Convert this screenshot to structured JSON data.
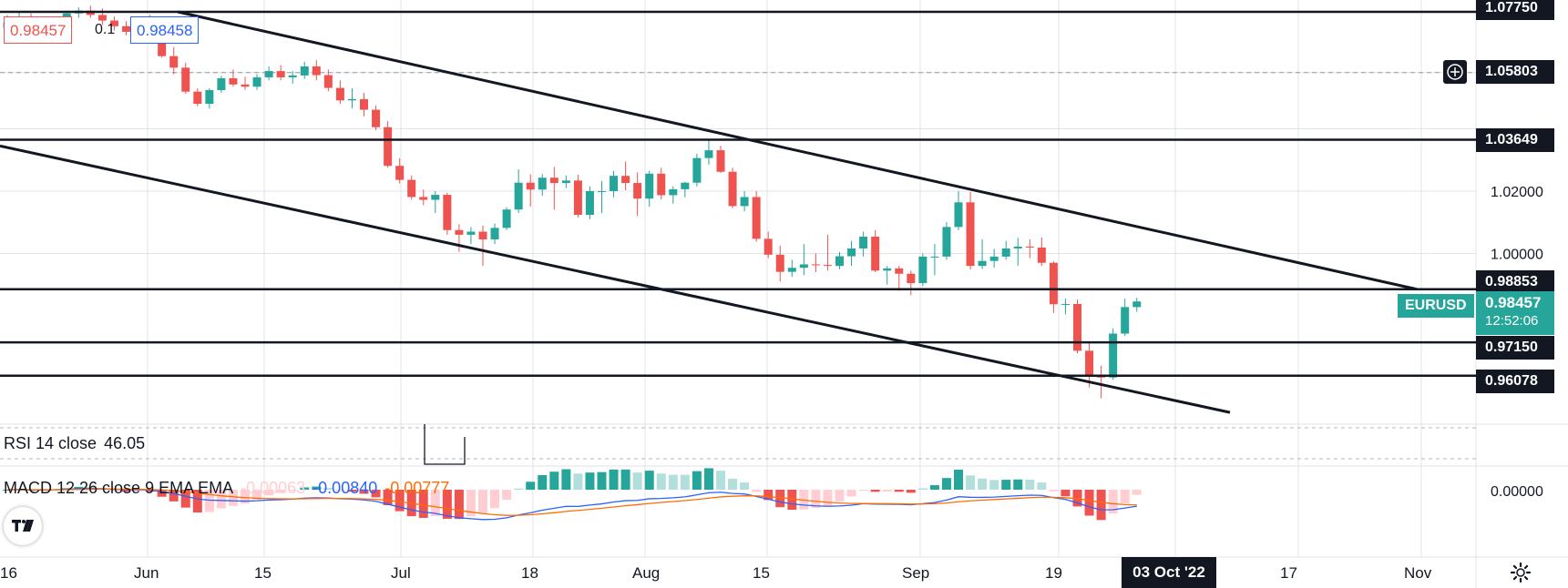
{
  "chart_data": {
    "type": "candlestick",
    "symbol": "EURUSD",
    "price_scale": {
      "ticks": [
        "1.02000",
        "1.00000"
      ],
      "range": [
        0.947,
        1.0813
      ]
    },
    "x_ticks": [
      "16",
      "Jun",
      "15",
      "Jul",
      "18",
      "Aug",
      "15",
      "Sep",
      "19",
      "03 Oct '22",
      "17",
      "Nov"
    ],
    "horizontal_levels": [
      {
        "label": "1.07750",
        "price": 1.0775
      },
      {
        "label": "1.03649",
        "price": 1.03649
      },
      {
        "label": "0.98853",
        "price": 0.98853
      },
      {
        "label": "0.97150",
        "price": 0.9715
      },
      {
        "label": "0.96078",
        "price": 0.96078
      }
    ],
    "crosshair_level": "1.05803",
    "live_price": {
      "value": "0.98457",
      "countdown": "12:52:06"
    },
    "bid": "0.98457",
    "spread": "0.1",
    "ask": "0.98458",
    "candles": [
      [
        1.0724,
        1.0765,
        1.0715,
        1.0741
      ],
      [
        1.0741,
        1.0775,
        1.073,
        1.0751
      ],
      [
        1.0751,
        1.077,
        1.0712,
        1.0725
      ],
      [
        1.0725,
        1.0748,
        1.071,
        1.0736
      ],
      [
        1.0736,
        1.076,
        1.0725,
        1.0748
      ],
      [
        1.0748,
        1.0779,
        1.074,
        1.077
      ],
      [
        1.077,
        1.079,
        1.0756,
        1.0779
      ],
      [
        1.0779,
        1.0795,
        1.0756,
        1.0765
      ],
      [
        1.0765,
        1.0786,
        1.0733,
        1.0747
      ],
      [
        1.0747,
        1.076,
        1.0715,
        1.0729
      ],
      [
        1.0729,
        1.0745,
        1.07,
        1.0711
      ],
      [
        1.0711,
        1.076,
        1.07,
        1.075
      ],
      [
        1.075,
        1.0766,
        1.0705,
        1.0723
      ],
      [
        1.0723,
        1.0735,
        1.0628,
        1.0633
      ],
      [
        1.0633,
        1.0662,
        1.0575,
        1.0596
      ],
      [
        1.0596,
        1.0612,
        1.0512,
        1.0519
      ],
      [
        1.0519,
        1.053,
        1.0472,
        1.048
      ],
      [
        1.048,
        1.053,
        1.0465,
        1.0524
      ],
      [
        1.0524,
        1.057,
        1.0515,
        1.0562
      ],
      [
        1.0562,
        1.059,
        1.0535,
        1.0542
      ],
      [
        1.0542,
        1.0566,
        1.0525,
        1.0535
      ],
      [
        1.0535,
        1.0575,
        1.0525,
        1.0565
      ],
      [
        1.0565,
        1.06,
        1.0555,
        1.0585
      ],
      [
        1.0585,
        1.0604,
        1.0555,
        1.0565
      ],
      [
        1.0565,
        1.0585,
        1.0545,
        1.0571
      ],
      [
        1.0571,
        1.0615,
        1.056,
        1.06
      ],
      [
        1.06,
        1.062,
        1.0555,
        1.0572
      ],
      [
        1.0572,
        1.059,
        1.052,
        1.0531
      ],
      [
        1.0531,
        1.0555,
        1.048,
        1.0491
      ],
      [
        1.0491,
        1.053,
        1.0465,
        1.0495
      ],
      [
        1.0495,
        1.0515,
        1.044,
        1.0461
      ],
      [
        1.0461,
        1.0475,
        1.0395,
        1.0405
      ],
      [
        1.0405,
        1.0425,
        1.0275,
        1.0281
      ],
      [
        1.0281,
        1.0305,
        1.0225,
        1.0236
      ],
      [
        1.0236,
        1.025,
        1.0172,
        1.0181
      ],
      [
        1.0181,
        1.0205,
        1.0155,
        1.0172
      ],
      [
        1.0172,
        1.02,
        1.013,
        1.0188
      ],
      [
        1.0188,
        1.0195,
        1.006,
        1.0075
      ],
      [
        1.0075,
        1.0094,
        1.0005,
        1.006
      ],
      [
        1.006,
        1.0085,
        1.003,
        1.007
      ],
      [
        1.007,
        1.009,
        0.996,
        1.0045
      ],
      [
        1.0045,
        1.0096,
        1.003,
        1.0082
      ],
      [
        1.0082,
        1.0148,
        1.0075,
        1.0141
      ],
      [
        1.0141,
        1.027,
        1.013,
        1.0227
      ],
      [
        1.0227,
        1.0254,
        1.015,
        1.0205
      ],
      [
        1.0205,
        1.0255,
        1.0185,
        1.0243
      ],
      [
        1.0243,
        1.0278,
        1.014,
        1.0226
      ],
      [
        1.0226,
        1.025,
        1.021,
        1.0234
      ],
      [
        1.0234,
        1.0253,
        1.0115,
        1.0124
      ],
      [
        1.0124,
        1.0215,
        1.011,
        1.02
      ],
      [
        1.02,
        1.0232,
        1.013,
        1.02
      ],
      [
        1.02,
        1.0265,
        1.018,
        1.0249
      ],
      [
        1.0249,
        1.0295,
        1.0203,
        1.0226
      ],
      [
        1.0226,
        1.026,
        1.012,
        1.0176
      ],
      [
        1.0176,
        1.0265,
        1.015,
        1.0256
      ],
      [
        1.0256,
        1.0275,
        1.0173,
        1.0187
      ],
      [
        1.0187,
        1.0215,
        1.016,
        1.0206
      ],
      [
        1.0206,
        1.023,
        1.018,
        1.0227
      ],
      [
        1.0227,
        1.032,
        1.0215,
        1.0306
      ],
      [
        1.0306,
        1.0366,
        1.0285,
        1.0331
      ],
      [
        1.0331,
        1.0345,
        1.0258,
        1.0262
      ],
      [
        1.0262,
        1.0275,
        1.0145,
        1.0152
      ],
      [
        1.0152,
        1.02,
        1.0135,
        1.0181
      ],
      [
        1.0181,
        1.02,
        1.0038,
        1.0047
      ],
      [
        1.0047,
        1.007,
        0.9985,
        0.9996
      ],
      [
        0.9996,
        1.0025,
        0.991,
        0.9941
      ],
      [
        0.9941,
        0.998,
        0.9925,
        0.9954
      ],
      [
        0.9954,
        1.003,
        0.993,
        0.9965
      ],
      [
        0.9965,
        1.0,
        0.994,
        0.9963
      ],
      [
        0.9963,
        1.006,
        0.9945,
        0.996
      ],
      [
        0.996,
        1.0005,
        0.995,
        0.9991
      ],
      [
        0.9991,
        1.004,
        0.996,
        1.0016
      ],
      [
        1.0016,
        1.007,
        0.999,
        1.0054
      ],
      [
        1.0054,
        1.0075,
        0.994,
        0.9945
      ],
      [
        0.9945,
        0.996,
        0.99,
        0.9952
      ],
      [
        0.9952,
        0.996,
        0.988,
        0.9935
      ],
      [
        0.9935,
        0.9945,
        0.9866,
        0.9905
      ],
      [
        0.9905,
        1.0,
        0.9895,
        0.999
      ],
      [
        0.999,
        1.003,
        0.993,
        0.999
      ],
      [
        0.999,
        1.0101,
        0.998,
        1.0085
      ],
      [
        1.0085,
        1.02,
        1.0075,
        1.0164
      ],
      [
        1.0164,
        1.0197,
        0.9949,
        0.996
      ],
      [
        0.996,
        1.0045,
        0.995,
        0.9976
      ],
      [
        0.9976,
        1.0015,
        0.9955,
        0.999
      ],
      [
        0.999,
        1.004,
        0.998,
        1.0016
      ],
      [
        1.0016,
        1.005,
        0.996,
        1.0022
      ],
      [
        1.0022,
        1.0045,
        0.9985,
        1.0019
      ],
      [
        1.0019,
        1.0051,
        0.996,
        0.997
      ],
      [
        0.997,
        0.9975,
        0.981,
        0.9837
      ],
      [
        0.9837,
        0.9855,
        0.9805,
        0.9838
      ],
      [
        0.9838,
        0.9852,
        0.968,
        0.9688
      ],
      [
        0.9688,
        0.9715,
        0.957,
        0.961
      ],
      [
        0.961,
        0.964,
        0.9535,
        0.9602
      ],
      [
        0.9602,
        0.976,
        0.9595,
        0.9743
      ],
      [
        0.9743,
        0.9855,
        0.9735,
        0.9828
      ],
      [
        0.9828,
        0.9858,
        0.9813,
        0.9846
      ]
    ],
    "indicators": {
      "rsi": {
        "label": "RSI 14 close",
        "value": "46.05"
      },
      "macd": {
        "label": "MACD 12 26 close 9 EMA EMA",
        "histogram": "-0.00063",
        "macd": "-0.00840",
        "signal": "-0.00777"
      },
      "macd_scale_tick": "0.00000"
    },
    "colors": {
      "up": "#26a69a",
      "down": "#ef5350",
      "rsi_line": "#131722",
      "macd_line": "#2962ff",
      "signal_line": "#ff6d00",
      "hist_pos_strong": "#26a69a",
      "hist_pos_weak": "#b2dfdb",
      "hist_neg_strong": "#ef5350",
      "hist_neg_weak": "#ffcdd2"
    }
  }
}
